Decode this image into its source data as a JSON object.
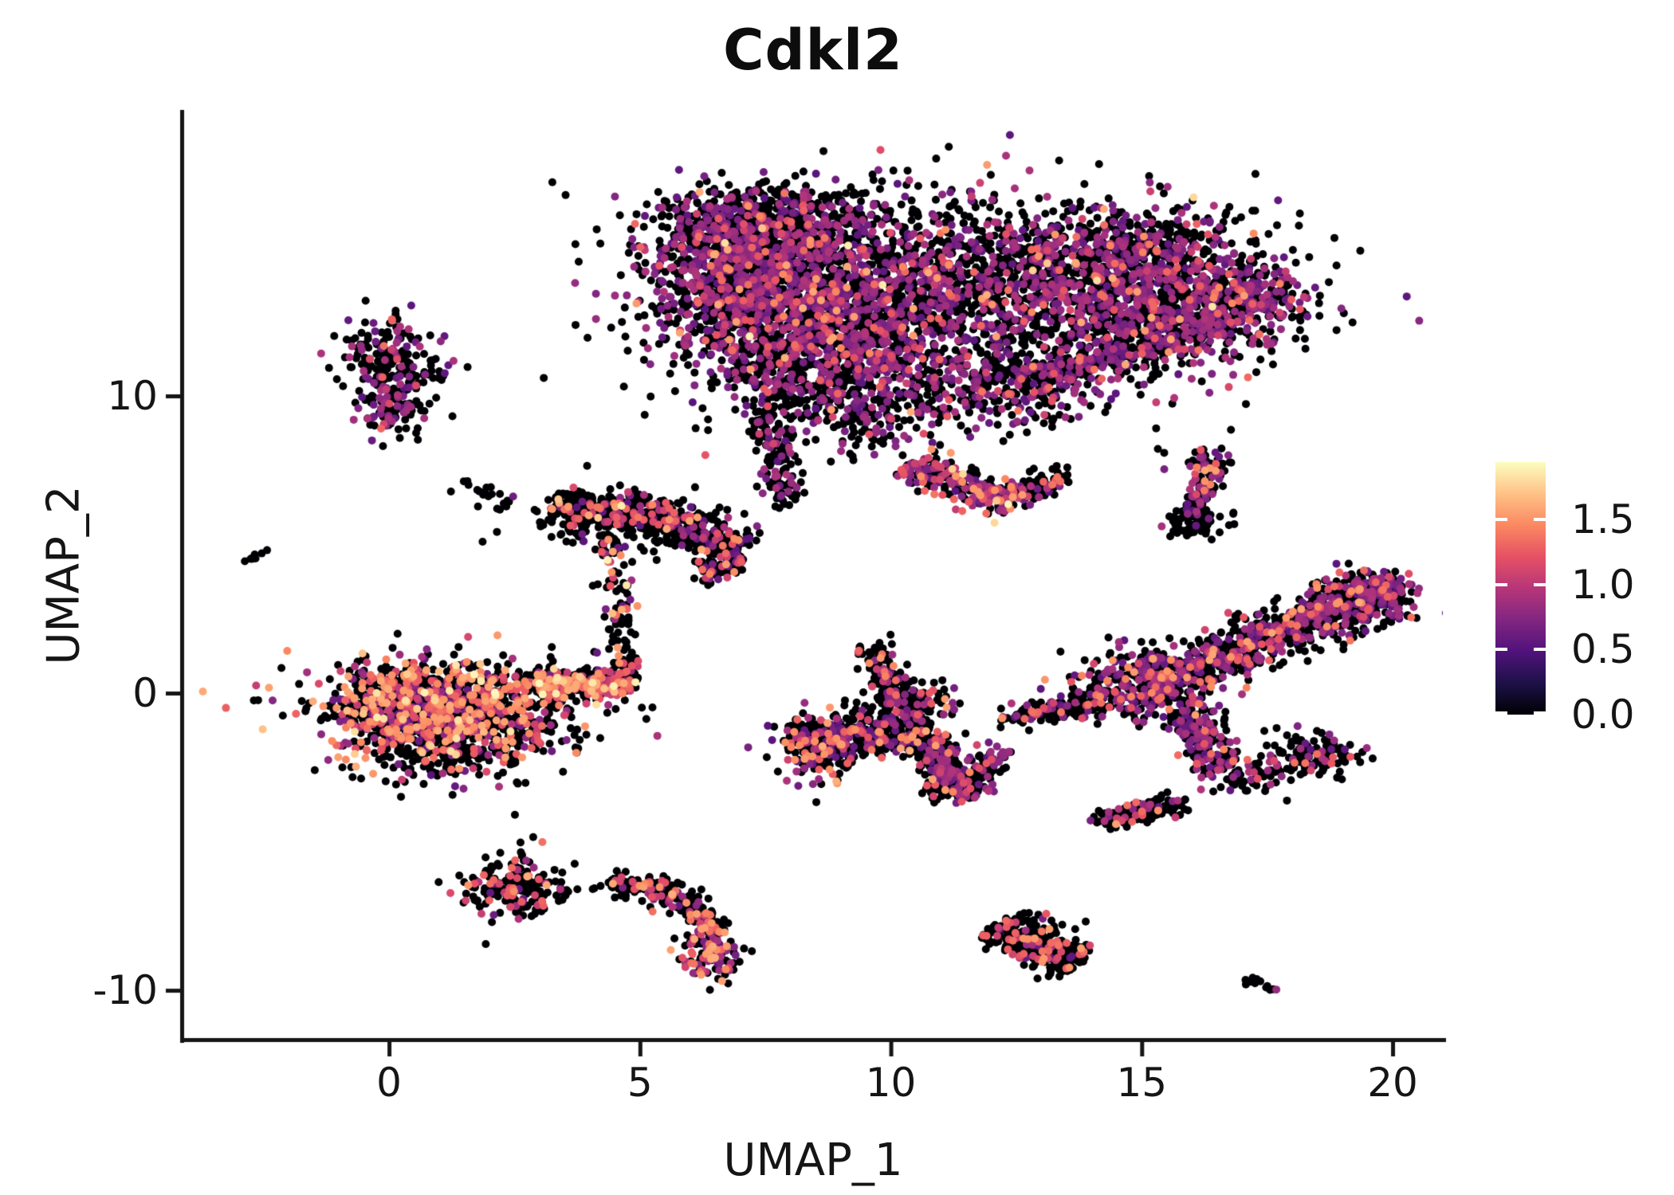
{
  "chart_data": {
    "type": "scatter",
    "subtype": "umap-feature-plot",
    "title": "Cdkl2",
    "xlabel": "UMAP_1",
    "ylabel": "UMAP_2",
    "x_ticks": [
      0,
      5,
      10,
      15,
      20
    ],
    "y_ticks": [
      -10,
      0,
      10
    ],
    "x_range": [
      -4.1,
      21.0
    ],
    "y_range": [
      -11.66,
      19.57
    ],
    "grid": false,
    "point_radius": 5,
    "point_zero_color": "#000004",
    "colorbar": {
      "position": "right",
      "ticks": [
        0.0,
        0.5,
        1.0,
        1.5
      ],
      "vmin": 0.0,
      "vmax": 1.94,
      "colormap": "magma",
      "stops": [
        [
          0.0,
          "#000004"
        ],
        [
          0.125,
          "#1d1147"
        ],
        [
          0.25,
          "#51127c"
        ],
        [
          0.375,
          "#822681"
        ],
        [
          0.5,
          "#b63679"
        ],
        [
          0.625,
          "#e65164"
        ],
        [
          0.75,
          "#fb8861"
        ],
        [
          0.875,
          "#fec287"
        ],
        [
          1.0,
          "#fcfdbf"
        ]
      ]
    },
    "band_names": [
      "zero",
      "purple",
      "pink",
      "orange",
      "peach"
    ],
    "value_bands": [
      [
        0,
        0
      ],
      [
        0.52,
        0.95
      ],
      [
        1.02,
        1.38
      ],
      [
        1.42,
        1.62
      ],
      [
        1.66,
        1.92
      ]
    ],
    "clusters": [
      {
        "id": "top-left-lobe-core",
        "s": "b",
        "cx": 7.2,
        "cy": 14.9,
        "sx": 1.1,
        "sy": 1.0,
        "n": 800,
        "mix": [
          0.58,
          0.34,
          0.06,
          0.015,
          0.005
        ]
      },
      {
        "id": "top-left-lobe-low",
        "s": "b",
        "cx": 8.6,
        "cy": 13.1,
        "sx": 1.5,
        "sy": 1.3,
        "n": 900,
        "mix": [
          0.58,
          0.34,
          0.06,
          0.015,
          0.005
        ]
      },
      {
        "id": "top-left-edge",
        "s": "b",
        "cx": 6.6,
        "cy": 12.9,
        "sx": 0.7,
        "sy": 0.9,
        "n": 280,
        "mix": [
          0.62,
          0.32,
          0.05,
          0.01,
          0
        ]
      },
      {
        "id": "top-crown",
        "s": "b",
        "cx": 7.8,
        "cy": 16.1,
        "sx": 1.1,
        "sy": 0.55,
        "n": 300,
        "mix": [
          0.62,
          0.33,
          0.04,
          0.01,
          0
        ]
      },
      {
        "id": "top-bridge",
        "s": "b",
        "cx": 10.9,
        "cy": 13.8,
        "sx": 1.3,
        "sy": 1.5,
        "n": 420,
        "mix": [
          0.72,
          0.24,
          0.03,
          0.01,
          0
        ]
      },
      {
        "id": "top-right-lobe",
        "s": "b",
        "cx": 13.7,
        "cy": 13.9,
        "sx": 1.5,
        "sy": 1.15,
        "n": 850,
        "mix": [
          0.58,
          0.35,
          0.05,
          0.015,
          0.005
        ]
      },
      {
        "id": "top-right-lobe2",
        "s": "b",
        "cx": 15.8,
        "cy": 13.0,
        "sx": 1.2,
        "sy": 1.0,
        "n": 650,
        "mix": [
          0.58,
          0.36,
          0.05,
          0.01,
          0
        ]
      },
      {
        "id": "top-right-crown",
        "s": "b",
        "cx": 15.2,
        "cy": 15.2,
        "sx": 0.9,
        "sy": 0.6,
        "n": 190,
        "mix": [
          0.66,
          0.3,
          0.04,
          0,
          0
        ]
      },
      {
        "id": "top-right-tip",
        "s": "b",
        "cx": 17.2,
        "cy": 13.3,
        "sx": 0.5,
        "sy": 0.5,
        "n": 150,
        "mix": [
          0.55,
          0.38,
          0.06,
          0.01,
          0
        ]
      },
      {
        "id": "top-under-arc",
        "s": "s",
        "x1": 12.8,
        "y1": 10.7,
        "x2": 16.6,
        "y2": 12.4,
        "th": 0.5,
        "n": 270,
        "mix": [
          0.62,
          0.32,
          0.05,
          0.01,
          0
        ]
      },
      {
        "id": "top-mid-under",
        "s": "b",
        "cx": 9.6,
        "cy": 9.9,
        "sx": 1.05,
        "sy": 0.95,
        "n": 330,
        "mix": [
          0.66,
          0.29,
          0.04,
          0.01,
          0
        ]
      },
      {
        "id": "top-neck",
        "s": "b",
        "cx": 7.9,
        "cy": 11.2,
        "sx": 0.8,
        "sy": 0.85,
        "n": 260,
        "mix": [
          0.62,
          0.33,
          0.05,
          0,
          0
        ]
      },
      {
        "id": "top-mid2",
        "s": "b",
        "cx": 9.3,
        "cy": 12.2,
        "sx": 0.95,
        "sy": 0.95,
        "n": 330,
        "mix": [
          0.6,
          0.34,
          0.05,
          0.01,
          0
        ]
      },
      {
        "id": "top-shelf",
        "s": "b",
        "cx": 12.6,
        "cy": 10.5,
        "sx": 0.85,
        "sy": 0.75,
        "n": 280,
        "mix": [
          0.6,
          0.34,
          0.05,
          0.01,
          0
        ]
      },
      {
        "id": "top-tail-left",
        "s": "s",
        "x1": 7.4,
        "y1": 9.9,
        "x2": 8.0,
        "y2": 6.3,
        "th": 0.35,
        "n": 160,
        "mix": [
          0.76,
          0.21,
          0.02,
          0.01,
          0
        ]
      },
      {
        "id": "top-hang-streak",
        "s": "s",
        "x1": 10.3,
        "y1": 7.7,
        "x2": 12.5,
        "y2": 6.4,
        "th": 0.45,
        "n": 270,
        "mix": [
          0.47,
          0.33,
          0.14,
          0.05,
          0.01
        ]
      },
      {
        "id": "top-hang-right",
        "s": "s",
        "x1": 12.6,
        "y1": 6.7,
        "x2": 13.4,
        "y2": 7.3,
        "th": 0.3,
        "n": 80,
        "mix": [
          0.75,
          0.2,
          0.05,
          0,
          0
        ]
      },
      {
        "id": "top-speckle",
        "s": "b",
        "cx": 11.3,
        "cy": 13.3,
        "sx": 3.2,
        "sy": 2.2,
        "n": 520,
        "mix": [
          0.78,
          0.19,
          0.025,
          0.005,
          0
        ]
      },
      {
        "id": "nw-cluster-main",
        "s": "b",
        "cx": 0.05,
        "cy": 11.2,
        "sx": 0.5,
        "sy": 0.72,
        "n": 190,
        "mix": [
          0.7,
          0.28,
          0.02,
          0,
          0
        ]
      },
      {
        "id": "nw-cluster-foot",
        "s": "b",
        "cx": 0.1,
        "cy": 9.5,
        "sx": 0.42,
        "sy": 0.42,
        "n": 90,
        "mix": [
          0.64,
          0.3,
          0.06,
          0,
          0
        ]
      },
      {
        "id": "nw-outliers",
        "s": "b",
        "cx": 1.0,
        "cy": 10.9,
        "sx": 0.25,
        "sy": 0.3,
        "n": 10,
        "mix": [
          1,
          0,
          0,
          0,
          0
        ]
      },
      {
        "id": "west-dash",
        "s": "s",
        "x1": -2.85,
        "y1": 4.45,
        "x2": -2.55,
        "y2": 4.68,
        "th": 0.06,
        "n": 9,
        "mix": [
          1,
          0,
          0,
          0,
          0
        ]
      },
      {
        "id": "mid-trail",
        "s": "s",
        "x1": 1.35,
        "y1": 7.15,
        "x2": 2.45,
        "y2": 6.25,
        "th": 0.1,
        "n": 16,
        "mix": [
          1,
          0,
          0,
          0,
          0
        ]
      },
      {
        "id": "seahorse-band1",
        "s": "s",
        "x1": 3.3,
        "y1": 6.3,
        "x2": 5.2,
        "y2": 6.05,
        "th": 0.5,
        "n": 240,
        "mix": [
          0.76,
          0.09,
          0.1,
          0.04,
          0.01
        ]
      },
      {
        "id": "seahorse-band2",
        "s": "s",
        "x1": 5.2,
        "y1": 6.0,
        "x2": 7.05,
        "y2": 4.75,
        "th": 0.45,
        "n": 230,
        "mix": [
          0.78,
          0.09,
          0.1,
          0.03,
          0
        ]
      },
      {
        "id": "seahorse-curl",
        "s": "s",
        "x1": 6.95,
        "y1": 4.55,
        "x2": 6.3,
        "y2": 3.95,
        "th": 0.3,
        "n": 90,
        "mix": [
          0.76,
          0.12,
          0.1,
          0.02,
          0
        ]
      },
      {
        "id": "seahorse-pendant",
        "s": "s",
        "x1": 4.4,
        "y1": 5.2,
        "x2": 4.75,
        "y2": 0.6,
        "th": 0.25,
        "n": 120,
        "mix": [
          0.72,
          0.1,
          0.08,
          0.07,
          0.03
        ]
      },
      {
        "id": "seahorse-speckle",
        "s": "b",
        "cx": 4.4,
        "cy": 5.9,
        "sx": 1.0,
        "sy": 0.5,
        "n": 130,
        "mix": [
          0.85,
          0.07,
          0.06,
          0.02,
          0
        ]
      },
      {
        "id": "seahorse-east",
        "s": "b",
        "cx": 6.2,
        "cy": 5.4,
        "sx": 0.5,
        "sy": 0.6,
        "n": 50,
        "mix": [
          0.9,
          0.1,
          0,
          0,
          0
        ]
      },
      {
        "id": "fish-body",
        "s": "b",
        "cx": 1.3,
        "cy": -0.35,
        "sx": 1.25,
        "sy": 0.7,
        "n": 950,
        "mix": [
          0.56,
          0.14,
          0.17,
          0.1,
          0.03
        ]
      },
      {
        "id": "fish-head",
        "s": "b",
        "cx": 0.05,
        "cy": -0.55,
        "sx": 0.55,
        "sy": 0.8,
        "n": 320,
        "mix": [
          0.6,
          0.14,
          0.15,
          0.09,
          0.02
        ]
      },
      {
        "id": "fish-tail",
        "s": "s",
        "x1": 2.9,
        "y1": 0.3,
        "x2": 4.85,
        "y2": 0.3,
        "th": 0.38,
        "n": 340,
        "mix": [
          0.45,
          0.1,
          0.3,
          0.12,
          0.03
        ]
      },
      {
        "id": "fish-belly",
        "s": "b",
        "cx": 1.5,
        "cy": -1.55,
        "sx": 1.0,
        "sy": 0.5,
        "n": 280,
        "mix": [
          0.62,
          0.16,
          0.13,
          0.07,
          0.02
        ]
      },
      {
        "id": "fish-under-scatter",
        "s": "b",
        "cx": 1.1,
        "cy": -2.55,
        "sx": 0.85,
        "sy": 0.4,
        "n": 55,
        "mix": [
          0.9,
          0.06,
          0.04,
          0,
          0
        ]
      },
      {
        "id": "bird-left-lobe",
        "s": "s",
        "x1": 8.15,
        "y1": -1.7,
        "x2": 10.7,
        "y2": -1.2,
        "th": 0.7,
        "n": 520,
        "mix": [
          0.74,
          0.16,
          0.07,
          0.03,
          0
        ]
      },
      {
        "id": "bird-left-edge",
        "s": "b",
        "cx": 8.4,
        "cy": -1.9,
        "sx": 0.45,
        "sy": 0.5,
        "n": 110,
        "mix": [
          0.6,
          0.18,
          0.16,
          0.06,
          0
        ]
      },
      {
        "id": "bird-vee-down",
        "s": "s",
        "x1": 10.75,
        "y1": -1.5,
        "x2": 11.3,
        "y2": -3.6,
        "th": 0.4,
        "n": 230,
        "mix": [
          0.58,
          0.34,
          0.06,
          0.02,
          0
        ]
      },
      {
        "id": "bird-vee-up",
        "s": "s",
        "x1": 11.35,
        "y1": -3.55,
        "x2": 12.15,
        "y2": -1.9,
        "th": 0.3,
        "n": 120,
        "mix": [
          0.62,
          0.3,
          0.08,
          0,
          0
        ]
      },
      {
        "id": "bird-arm",
        "s": "s",
        "x1": 9.6,
        "y1": 1.7,
        "x2": 10.2,
        "y2": -0.5,
        "th": 0.27,
        "n": 120,
        "mix": [
          0.68,
          0.17,
          0.09,
          0.06,
          0
        ]
      },
      {
        "id": "bird-arm-base",
        "s": "b",
        "cx": 10.35,
        "cy": -0.35,
        "sx": 0.5,
        "sy": 0.42,
        "n": 110,
        "mix": [
          0.7,
          0.2,
          0.07,
          0.03,
          0
        ]
      },
      {
        "id": "bird-bridge",
        "s": "s",
        "x1": 12.3,
        "y1": -0.85,
        "x2": 14.6,
        "y2": -0.1,
        "th": 0.32,
        "n": 170,
        "mix": [
          0.7,
          0.21,
          0.07,
          0.02,
          0
        ]
      },
      {
        "id": "bird-junction",
        "s": "b",
        "cx": 14.95,
        "cy": 0.3,
        "sx": 0.7,
        "sy": 0.65,
        "n": 280,
        "mix": [
          0.56,
          0.32,
          0.08,
          0.04,
          0
        ]
      },
      {
        "id": "bird-band",
        "s": "s",
        "x1": 15.1,
        "y1": 0.2,
        "x2": 20.1,
        "y2": 3.55,
        "th": 0.68,
        "n": 880,
        "mix": [
          0.6,
          0.32,
          0.06,
          0.02,
          0
        ]
      },
      {
        "id": "bird-band-tip",
        "s": "b",
        "cx": 19.5,
        "cy": 3.3,
        "sx": 0.5,
        "sy": 0.42,
        "n": 160,
        "mix": [
          0.52,
          0.4,
          0.07,
          0.01,
          0
        ]
      },
      {
        "id": "bird-hook",
        "s": "s",
        "x1": 15.85,
        "y1": -0.6,
        "x2": 16.65,
        "y2": -2.55,
        "th": 0.45,
        "n": 200,
        "mix": [
          0.6,
          0.31,
          0.07,
          0.02,
          0
        ]
      },
      {
        "id": "bird-hook-tip",
        "s": "b",
        "cx": 17.1,
        "cy": -2.85,
        "sx": 0.4,
        "sy": 0.3,
        "n": 70,
        "mix": [
          0.72,
          0.22,
          0.06,
          0,
          0
        ]
      },
      {
        "id": "bird-lower-blob",
        "s": "b",
        "cx": 18.35,
        "cy": -2.05,
        "sx": 0.5,
        "sy": 0.38,
        "n": 120,
        "mix": [
          0.78,
          0.18,
          0.04,
          0,
          0
        ]
      },
      {
        "id": "island-mid",
        "s": "s",
        "x1": 14.15,
        "y1": -4.35,
        "x2": 15.75,
        "y2": -3.65,
        "th": 0.3,
        "n": 150,
        "mix": [
          0.82,
          0.12,
          0.05,
          0.01,
          0
        ]
      },
      {
        "id": "crescent-west",
        "s": "b",
        "cx": 2.55,
        "cy": -6.5,
        "sx": 0.48,
        "sy": 0.52,
        "n": 190,
        "mix": [
          0.7,
          0.1,
          0.14,
          0.06,
          0
        ]
      },
      {
        "id": "crescent-dots",
        "s": "s",
        "x1": 3.3,
        "y1": -6.75,
        "x2": 4.25,
        "y2": -6.55,
        "th": 0.08,
        "n": 9,
        "mix": [
          1,
          0,
          0,
          0,
          0
        ]
      },
      {
        "id": "crescent-arc1",
        "s": "s",
        "x1": 4.4,
        "y1": -6.35,
        "x2": 5.75,
        "y2": -6.75,
        "th": 0.27,
        "n": 150,
        "mix": [
          0.72,
          0.08,
          0.13,
          0.07,
          0
        ]
      },
      {
        "id": "crescent-arc2",
        "s": "s",
        "x1": 5.8,
        "y1": -6.85,
        "x2": 6.55,
        "y2": -8.1,
        "th": 0.27,
        "n": 110,
        "mix": [
          0.72,
          0.1,
          0.12,
          0.06,
          0
        ]
      },
      {
        "id": "crescent-hook",
        "s": "b",
        "cx": 6.4,
        "cy": -8.75,
        "sx": 0.28,
        "sy": 0.45,
        "n": 130,
        "mix": [
          0.55,
          0.22,
          0.15,
          0.08,
          0
        ]
      },
      {
        "id": "island-oval",
        "s": "s",
        "x1": 12.1,
        "y1": -7.75,
        "x2": 13.75,
        "y2": -9.15,
        "th": 0.52,
        "n": 370,
        "mix": [
          0.82,
          0.04,
          0.11,
          0.03,
          0
        ]
      },
      {
        "id": "dash-se",
        "s": "s",
        "x1": 17.1,
        "y1": -9.6,
        "x2": 17.75,
        "y2": -9.95,
        "th": 0.1,
        "n": 13,
        "mix": [
          0.85,
          0.15,
          0,
          0,
          0
        ]
      },
      {
        "id": "sliver-top",
        "s": "b",
        "cx": 16.35,
        "cy": 7.6,
        "sx": 0.26,
        "sy": 0.3,
        "n": 55,
        "mix": [
          0.55,
          0.25,
          0.12,
          0.08,
          0
        ]
      },
      {
        "id": "sliver-curve",
        "s": "s",
        "x1": 16.3,
        "y1": 7.2,
        "x2": 15.98,
        "y2": 6.0,
        "th": 0.18,
        "n": 75,
        "mix": [
          0.7,
          0.28,
          0.02,
          0,
          0
        ]
      },
      {
        "id": "sliver-base",
        "s": "b",
        "cx": 16.1,
        "cy": 5.8,
        "sx": 0.28,
        "sy": 0.26,
        "n": 85,
        "mix": [
          0.93,
          0.07,
          0,
          0,
          0
        ]
      }
    ]
  }
}
